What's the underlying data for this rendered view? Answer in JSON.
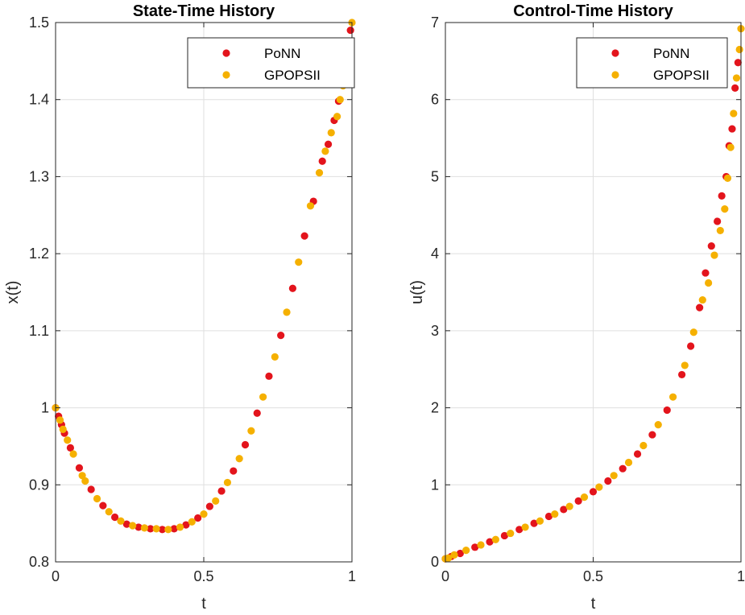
{
  "chart_data": [
    {
      "type": "scatter",
      "title": "State-Time History",
      "xlabel": "t",
      "ylabel": "x(t)",
      "xlim": [
        0,
        1
      ],
      "ylim": [
        0.8,
        1.5
      ],
      "xticks": [
        "0",
        "0.5",
        "1"
      ],
      "yticks": [
        "0.8",
        "0.9",
        "1",
        "1.1",
        "1.2",
        "1.3",
        "1.4",
        "1.5"
      ],
      "grid": true,
      "legend_position": "top-right",
      "series": [
        {
          "name": "PoNN",
          "color": "#e3141c",
          "x": [
            0.0,
            0.01,
            0.02,
            0.03,
            0.05,
            0.08,
            0.12,
            0.16,
            0.2,
            0.24,
            0.28,
            0.32,
            0.36,
            0.4,
            0.44,
            0.48,
            0.52,
            0.56,
            0.6,
            0.64,
            0.68,
            0.72,
            0.76,
            0.8,
            0.84,
            0.87,
            0.9,
            0.92,
            0.94,
            0.955,
            0.965,
            0.975,
            0.985,
            0.995
          ],
          "y": [
            1.0,
            0.989,
            0.978,
            0.967,
            0.948,
            0.922,
            0.894,
            0.873,
            0.858,
            0.849,
            0.845,
            0.843,
            0.842,
            0.843,
            0.848,
            0.857,
            0.872,
            0.892,
            0.918,
            0.952,
            0.993,
            1.041,
            1.094,
            1.155,
            1.223,
            1.268,
            1.32,
            1.342,
            1.373,
            1.398,
            1.42,
            1.44,
            1.466,
            1.49
          ]
        },
        {
          "name": "GPOPSII",
          "color": "#f5b000",
          "x": [
            0.0,
            0.015,
            0.025,
            0.04,
            0.06,
            0.09,
            0.1,
            0.14,
            0.18,
            0.22,
            0.26,
            0.3,
            0.34,
            0.38,
            0.42,
            0.46,
            0.5,
            0.54,
            0.58,
            0.62,
            0.66,
            0.7,
            0.74,
            0.78,
            0.82,
            0.86,
            0.89,
            0.91,
            0.93,
            0.95,
            0.96,
            0.97,
            0.98,
            0.99,
            1.0
          ],
          "y": [
            1.0,
            0.984,
            0.972,
            0.958,
            0.94,
            0.912,
            0.905,
            0.882,
            0.865,
            0.853,
            0.847,
            0.844,
            0.843,
            0.842,
            0.845,
            0.852,
            0.862,
            0.879,
            0.903,
            0.934,
            0.97,
            1.014,
            1.066,
            1.124,
            1.189,
            1.262,
            1.305,
            1.333,
            1.357,
            1.378,
            1.4,
            1.418,
            1.45,
            1.475,
            1.5
          ]
        }
      ]
    },
    {
      "type": "scatter",
      "title": "Control-Time History",
      "xlabel": "t",
      "ylabel": "u(t)",
      "xlim": [
        0,
        1
      ],
      "ylim": [
        0,
        7
      ],
      "xticks": [
        "0",
        "0.5",
        "1"
      ],
      "yticks": [
        "0",
        "1",
        "2",
        "3",
        "4",
        "5",
        "6",
        "7"
      ],
      "grid": true,
      "legend_position": "top-right",
      "series": [
        {
          "name": "PoNN",
          "color": "#e3141c",
          "x": [
            0.0,
            0.02,
            0.05,
            0.1,
            0.15,
            0.2,
            0.25,
            0.3,
            0.35,
            0.4,
            0.45,
            0.5,
            0.55,
            0.6,
            0.65,
            0.7,
            0.75,
            0.8,
            0.83,
            0.86,
            0.88,
            0.9,
            0.92,
            0.935,
            0.95,
            0.96,
            0.97,
            0.98,
            0.99
          ],
          "y": [
            0.04,
            0.07,
            0.11,
            0.19,
            0.26,
            0.34,
            0.42,
            0.5,
            0.59,
            0.68,
            0.79,
            0.91,
            1.05,
            1.21,
            1.4,
            1.65,
            1.97,
            2.43,
            2.8,
            3.3,
            3.75,
            4.1,
            4.42,
            4.75,
            5.0,
            5.4,
            5.62,
            6.15,
            6.48
          ]
        },
        {
          "name": "GPOPSII",
          "color": "#f5b000",
          "x": [
            0.0,
            0.01,
            0.03,
            0.07,
            0.12,
            0.17,
            0.22,
            0.27,
            0.32,
            0.37,
            0.42,
            0.47,
            0.52,
            0.57,
            0.62,
            0.67,
            0.72,
            0.77,
            0.81,
            0.84,
            0.87,
            0.89,
            0.91,
            0.93,
            0.945,
            0.955,
            0.965,
            0.975,
            0.985,
            0.995,
            1.0
          ],
          "y": [
            0.04,
            0.05,
            0.09,
            0.15,
            0.22,
            0.29,
            0.37,
            0.45,
            0.53,
            0.62,
            0.72,
            0.84,
            0.97,
            1.12,
            1.29,
            1.51,
            1.78,
            2.14,
            2.55,
            2.98,
            3.4,
            3.62,
            3.98,
            4.3,
            4.58,
            4.98,
            5.38,
            5.82,
            6.28,
            6.65,
            6.92
          ]
        }
      ]
    }
  ]
}
